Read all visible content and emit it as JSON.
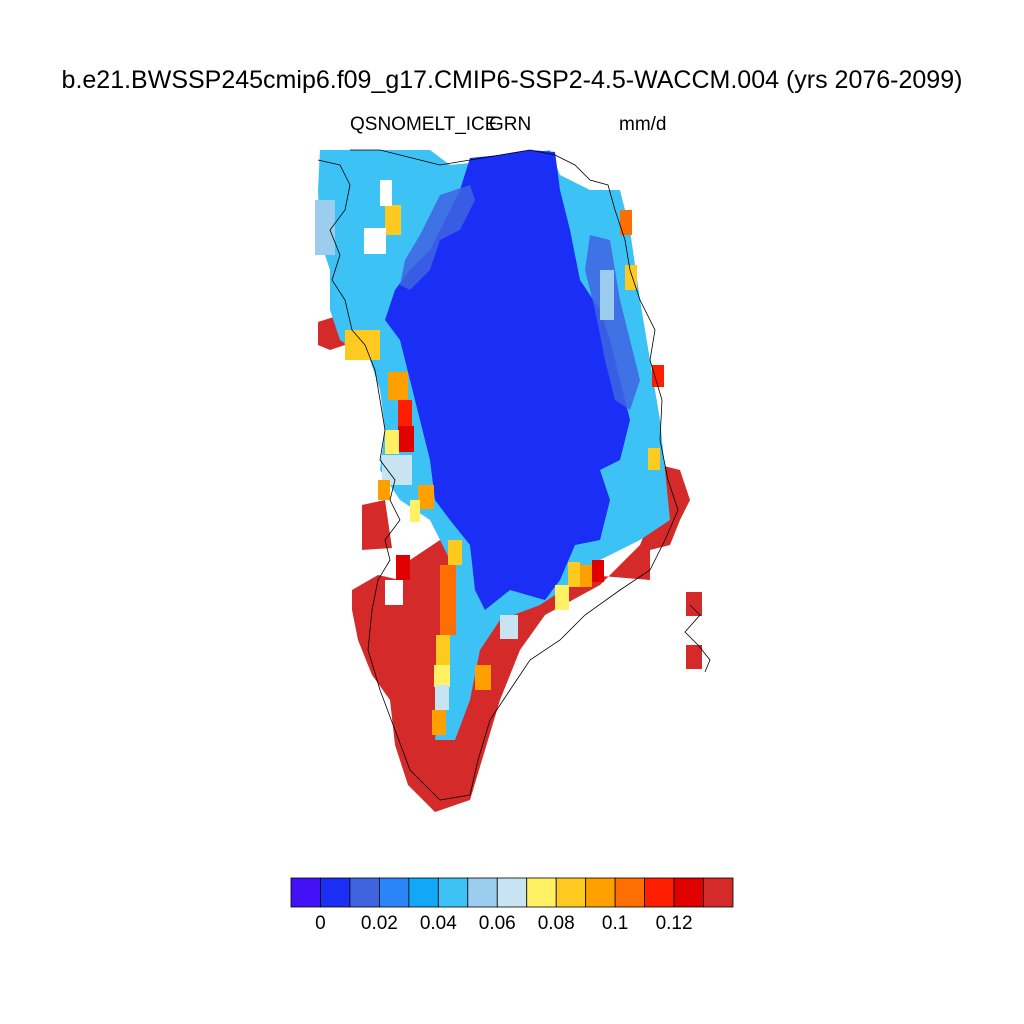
{
  "title": "b.e21.BWSSP245cmip6.f09_g17.CMIP6-SSP2-4.5-WACCM.004 (yrs 2076-2099)",
  "variable": "QSNOMELT_ICE",
  "region": "GRN",
  "units": "mm/d",
  "colorbar": {
    "colors": [
      "#4410f5",
      "#1a2ef5",
      "#4064e0",
      "#2a86f8",
      "#12a8f8",
      "#3cc2f5",
      "#9ccdee",
      "#c8e4f2",
      "#fff064",
      "#ffca20",
      "#ffa000",
      "#ff6e00",
      "#ff1e00",
      "#e00000",
      "#d42a2a"
    ],
    "labels": [
      "0",
      "0.02",
      "0.04",
      "0.06",
      "0.08",
      "0.1",
      "0.12"
    ]
  }
}
